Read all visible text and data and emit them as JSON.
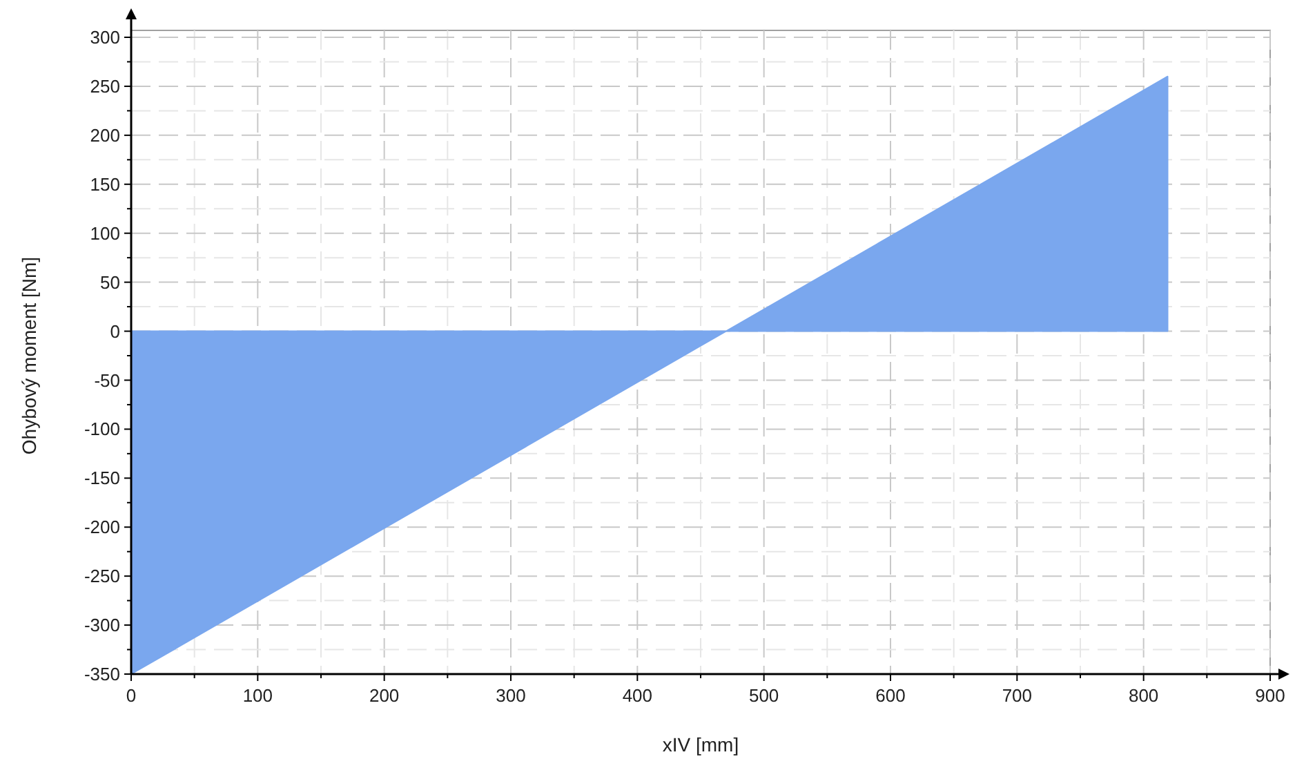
{
  "chart_data": {
    "type": "area",
    "xlabel": "xIV [mm]",
    "ylabel": "Ohybový moment [Nm]",
    "x": [
      0,
      470,
      819
    ],
    "series": [
      {
        "color": "#7aa7ee",
        "values": [
          -350,
          0,
          260
        ]
      }
    ],
    "xlim": [
      0,
      900
    ],
    "xticks": [
      0,
      {
        "value": 50,
        "label": null
      },
      100,
      {
        "value": 150,
        "label": null
      },
      200,
      {
        "value": 250,
        "label": null
      },
      300,
      {
        "value": 350,
        "label": null
      },
      400,
      {
        "value": 450,
        "label": null
      },
      500,
      {
        "value": 550,
        "label": null
      },
      600,
      {
        "value": 650,
        "label": null
      },
      700,
      {
        "value": 750,
        "label": null
      },
      800,
      {
        "value": 850,
        "label": null
      },
      900
    ],
    "ylim": [
      -350,
      300
    ],
    "yticks": [
      -350,
      {
        "value": -325,
        "label": null
      },
      -300,
      {
        "value": -275,
        "label": null
      },
      -250,
      {
        "value": -225,
        "label": null
      },
      -200,
      {
        "value": -175,
        "label": null
      },
      -150,
      {
        "value": -125,
        "label": null
      },
      -100,
      {
        "value": -75,
        "label": null
      },
      -50,
      {
        "value": -25,
        "label": null
      },
      0,
      {
        "value": 25,
        "label": null
      },
      50,
      {
        "value": 75,
        "label": null
      },
      100,
      {
        "value": 125,
        "label": null
      },
      150,
      {
        "value": 175,
        "label": null
      },
      200,
      {
        "value": 225,
        "label": null
      },
      250,
      {
        "value": 275,
        "label": null
      },
      300
    ],
    "grid": true
  }
}
